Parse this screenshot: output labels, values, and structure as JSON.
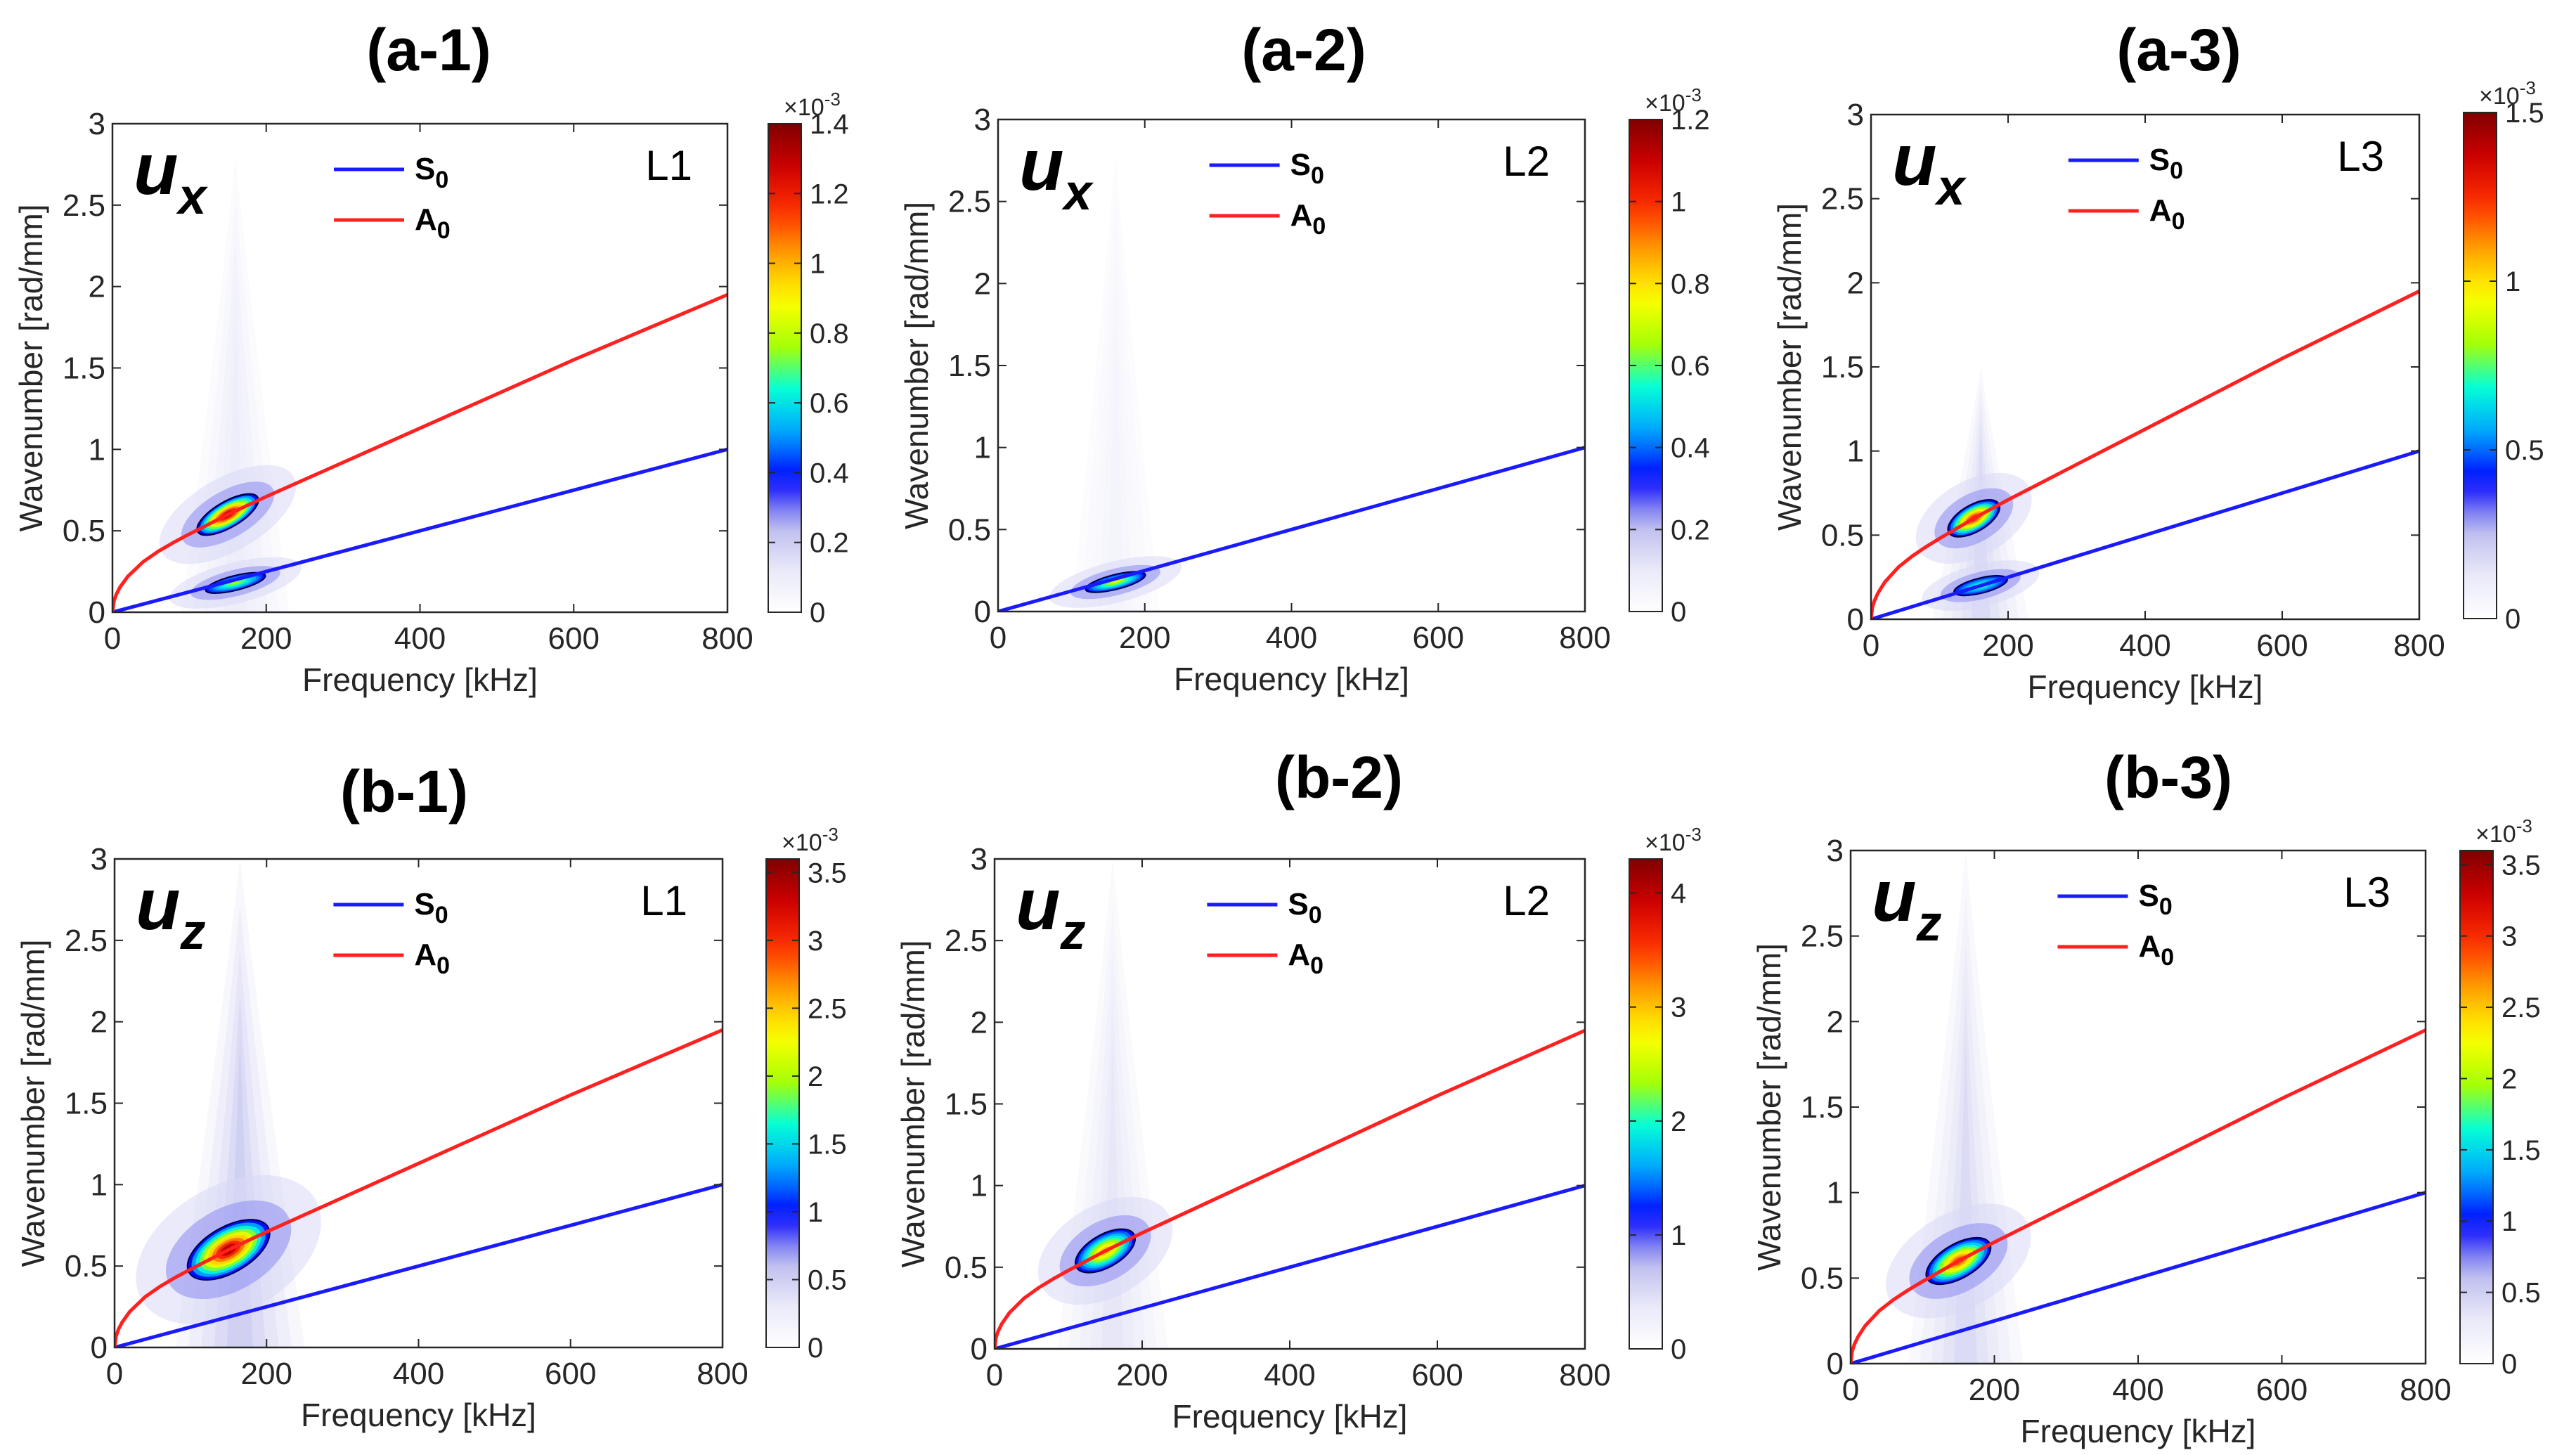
{
  "figure": {
    "description_free": true,
    "colormap": [
      "#ffffff",
      "#e8e8f8",
      "#b8b8ee",
      "#0000ff",
      "#00a0ff",
      "#00ffdd",
      "#aaff00",
      "#ffff00",
      "#ffa500",
      "#ff3300",
      "#d00000",
      "#800000"
    ],
    "line_colors": {
      "S0": "#1a1aff",
      "A0": "#ff2020"
    }
  },
  "chart_data": [
    {
      "id": "a-1",
      "type": "heatmap",
      "title": "(a-1)",
      "component": "u",
      "component_sub": "x",
      "layer": "L1",
      "xlabel": "Frequency [kHz]",
      "ylabel": "Wavenumber [rad/mm]",
      "xlim": [
        0,
        800
      ],
      "ylim": [
        0,
        3
      ],
      "xticks": [
        "0",
        "200",
        "400",
        "600",
        "800"
      ],
      "yticks": [
        "0",
        "0.5",
        "1",
        "1.5",
        "2",
        "2.5",
        "3"
      ],
      "legend": [
        {
          "name": "S",
          "sub": "0",
          "color": "#1a1aff"
        },
        {
          "name": "A",
          "sub": "0",
          "color": "#ff2020"
        }
      ],
      "colorbar": {
        "exponent": "×10",
        "exponent_sup": "-3",
        "max": 1.4,
        "ticks": [
          "0",
          "0.2",
          "0.4",
          "0.6",
          "0.8",
          "1",
          "1.2",
          "1.4"
        ],
        "tick_values": [
          0,
          0.2,
          0.4,
          0.6,
          0.8,
          1.0,
          1.2,
          1.4
        ]
      },
      "series": [
        {
          "name": "S0",
          "x": [
            0,
            200,
            400,
            600,
            800
          ],
          "y": [
            0,
            0.25,
            0.5,
            0.75,
            1.0
          ]
        },
        {
          "name": "A0",
          "x": [
            0,
            2,
            5,
            10,
            20,
            40,
            60,
            80,
            100,
            150,
            200,
            300,
            400,
            500,
            600,
            700,
            800
          ],
          "y": [
            0,
            0.07,
            0.11,
            0.155,
            0.22,
            0.31,
            0.375,
            0.43,
            0.48,
            0.6,
            0.71,
            0.92,
            1.13,
            1.34,
            1.55,
            1.75,
            1.95
          ]
        }
      ],
      "hotspots": [
        {
          "x": 150,
          "y": 0.6,
          "rx": 45,
          "ry": 0.08,
          "level": 1.0
        },
        {
          "x": 160,
          "y": 0.18,
          "rx": 40,
          "ry": 0.045,
          "level": 0.55
        }
      ],
      "haze": {
        "x": 160,
        "halfwidth": 70,
        "top": 2.8,
        "level": 0.06
      }
    },
    {
      "id": "a-2",
      "type": "heatmap",
      "title": "(a-2)",
      "component": "u",
      "component_sub": "x",
      "layer": "L2",
      "xlabel": "Frequency [kHz]",
      "ylabel": "Wavenumber [rad/mm]",
      "xlim": [
        0,
        800
      ],
      "ylim": [
        0,
        3
      ],
      "xticks": [
        "0",
        "200",
        "400",
        "600",
        "800"
      ],
      "yticks": [
        "0",
        "0.5",
        "1",
        "1.5",
        "2",
        "2.5",
        "3"
      ],
      "legend": [
        {
          "name": "S",
          "sub": "0",
          "color": "#1a1aff"
        },
        {
          "name": "A",
          "sub": "0",
          "color": "#ff2020"
        }
      ],
      "colorbar": {
        "exponent": "×10",
        "exponent_sup": "-3",
        "max": 1.2,
        "ticks": [
          "0",
          "0.2",
          "0.4",
          "0.6",
          "0.8",
          "1",
          "1.2"
        ],
        "tick_values": [
          0,
          0.2,
          0.4,
          0.6,
          0.8,
          1.0,
          1.2
        ]
      },
      "series": [
        {
          "name": "S0",
          "x": [
            0,
            200,
            400,
            600,
            800
          ],
          "y": [
            0,
            0.25,
            0.5,
            0.75,
            1.0
          ]
        }
      ],
      "hotspots": [
        {
          "x": 160,
          "y": 0.18,
          "rx": 42,
          "ry": 0.045,
          "level": 0.6
        }
      ],
      "haze": {
        "x": 160,
        "halfwidth": 60,
        "top": 2.8,
        "level": 0.04
      }
    },
    {
      "id": "a-3",
      "type": "heatmap",
      "title": "(a-3)",
      "component": "u",
      "component_sub": "x",
      "layer": "L3",
      "xlabel": "Frequency [kHz]",
      "ylabel": "Wavenumber [rad/mm]",
      "xlim": [
        0,
        800
      ],
      "ylim": [
        0,
        3
      ],
      "xticks": [
        "0",
        "200",
        "400",
        "600",
        "800"
      ],
      "yticks": [
        "0",
        "0.5",
        "1",
        "1.5",
        "2",
        "2.5",
        "3"
      ],
      "legend": [
        {
          "name": "S",
          "sub": "0",
          "color": "#1a1aff"
        },
        {
          "name": "A",
          "sub": "0",
          "color": "#ff2020"
        }
      ],
      "colorbar": {
        "exponent": "×10",
        "exponent_sup": "-3",
        "max": 1.5,
        "ticks": [
          "0",
          "0.5",
          "1",
          "1.5"
        ],
        "tick_values": [
          0,
          0.5,
          1.0,
          1.5
        ]
      },
      "series": [
        {
          "name": "S0",
          "x": [
            0,
            200,
            400,
            600,
            800
          ],
          "y": [
            0,
            0.25,
            0.5,
            0.75,
            1.0
          ]
        },
        {
          "name": "A0",
          "x": [
            0,
            2,
            5,
            10,
            20,
            40,
            60,
            80,
            100,
            150,
            200,
            300,
            400,
            500,
            600,
            700,
            800
          ],
          "y": [
            0,
            0.07,
            0.11,
            0.155,
            0.22,
            0.31,
            0.375,
            0.43,
            0.48,
            0.6,
            0.71,
            0.92,
            1.13,
            1.34,
            1.55,
            1.75,
            1.95
          ]
        }
      ],
      "hotspots": [
        {
          "x": 150,
          "y": 0.6,
          "rx": 42,
          "ry": 0.08,
          "level": 0.9
        },
        {
          "x": 160,
          "y": 0.2,
          "rx": 40,
          "ry": 0.045,
          "level": 0.5
        }
      ],
      "haze": {
        "x": 160,
        "halfwidth": 70,
        "top": 1.5,
        "level": 0.1
      }
    },
    {
      "id": "b-1",
      "type": "heatmap",
      "title": "(b-1)",
      "component": "u",
      "component_sub": "z",
      "layer": "L1",
      "xlabel": "Frequency [kHz]",
      "ylabel": "Wavenumber [rad/mm]",
      "xlim": [
        0,
        800
      ],
      "ylim": [
        0,
        3
      ],
      "xticks": [
        "0",
        "200",
        "400",
        "600",
        "800"
      ],
      "yticks": [
        "0",
        "0.5",
        "1",
        "1.5",
        "2",
        "2.5",
        "3"
      ],
      "legend": [
        {
          "name": "S",
          "sub": "0",
          "color": "#1a1aff"
        },
        {
          "name": "A",
          "sub": "0",
          "color": "#ff2020"
        }
      ],
      "colorbar": {
        "exponent": "×10",
        "exponent_sup": "-3",
        "max": 3.6,
        "ticks": [
          "0",
          "0.5",
          "1",
          "1.5",
          "2",
          "2.5",
          "3",
          "3.5"
        ],
        "tick_values": [
          0,
          0.5,
          1.0,
          1.5,
          2.0,
          2.5,
          3.0,
          3.5
        ]
      },
      "series": [
        {
          "name": "S0",
          "x": [
            0,
            200,
            400,
            600,
            800
          ],
          "y": [
            0,
            0.25,
            0.5,
            0.75,
            1.0
          ]
        },
        {
          "name": "A0",
          "x": [
            0,
            2,
            5,
            10,
            20,
            40,
            60,
            80,
            100,
            150,
            200,
            300,
            400,
            500,
            600,
            700,
            800
          ],
          "y": [
            0,
            0.07,
            0.11,
            0.155,
            0.22,
            0.31,
            0.375,
            0.43,
            0.48,
            0.6,
            0.71,
            0.92,
            1.13,
            1.34,
            1.55,
            1.75,
            1.95
          ]
        }
      ],
      "hotspots": [
        {
          "x": 150,
          "y": 0.6,
          "rx": 60,
          "ry": 0.14,
          "level": 1.0
        }
      ],
      "haze": {
        "x": 165,
        "halfwidth": 85,
        "top": 3.0,
        "level": 0.12
      }
    },
    {
      "id": "b-2",
      "type": "heatmap",
      "title": "(b-2)",
      "component": "u",
      "component_sub": "z",
      "layer": "L2",
      "xlabel": "Frequency [kHz]",
      "ylabel": "Wavenumber [rad/mm]",
      "xlim": [
        0,
        800
      ],
      "ylim": [
        0,
        3
      ],
      "xticks": [
        "0",
        "200",
        "400",
        "600",
        "800"
      ],
      "yticks": [
        "0",
        "0.5",
        "1",
        "1.5",
        "2",
        "2.5",
        "3"
      ],
      "legend": [
        {
          "name": "S",
          "sub": "0",
          "color": "#1a1aff"
        },
        {
          "name": "A",
          "sub": "0",
          "color": "#ff2020"
        }
      ],
      "colorbar": {
        "exponent": "×10",
        "exponent_sup": "-3",
        "max": 4.3,
        "ticks": [
          "0",
          "1",
          "2",
          "3",
          "4"
        ],
        "tick_values": [
          0,
          1,
          2,
          3,
          4
        ]
      },
      "series": [
        {
          "name": "S0",
          "x": [
            0,
            200,
            400,
            600,
            800
          ],
          "y": [
            0,
            0.25,
            0.5,
            0.75,
            1.0
          ]
        },
        {
          "name": "A0",
          "x": [
            0,
            2,
            5,
            10,
            20,
            40,
            60,
            80,
            100,
            150,
            200,
            300,
            400,
            500,
            600,
            700,
            800
          ],
          "y": [
            0,
            0.07,
            0.11,
            0.155,
            0.22,
            0.31,
            0.375,
            0.43,
            0.48,
            0.6,
            0.71,
            0.92,
            1.13,
            1.34,
            1.55,
            1.75,
            1.95
          ]
        }
      ],
      "hotspots": [
        {
          "x": 150,
          "y": 0.6,
          "rx": 45,
          "ry": 0.1,
          "level": 0.75
        }
      ],
      "haze": {
        "x": 160,
        "halfwidth": 75,
        "top": 3.0,
        "level": 0.08
      }
    },
    {
      "id": "b-3",
      "type": "heatmap",
      "title": "(b-3)",
      "component": "u",
      "component_sub": "z",
      "layer": "L3",
      "xlabel": "Frequency [kHz]",
      "ylabel": "Wavenumber [rad/mm]",
      "xlim": [
        0,
        800
      ],
      "ylim": [
        0,
        3
      ],
      "xticks": [
        "0",
        "200",
        "400",
        "600",
        "800"
      ],
      "yticks": [
        "0",
        "0.5",
        "1",
        "1.5",
        "2",
        "2.5",
        "3"
      ],
      "legend": [
        {
          "name": "S",
          "sub": "0",
          "color": "#1a1aff"
        },
        {
          "name": "A",
          "sub": "0",
          "color": "#ff2020"
        }
      ],
      "colorbar": {
        "exponent": "×10",
        "exponent_sup": "-3",
        "max": 3.6,
        "ticks": [
          "0",
          "0.5",
          "1",
          "1.5",
          "2",
          "2.5",
          "3",
          "3.5"
        ],
        "tick_values": [
          0,
          0.5,
          1.0,
          1.5,
          2.0,
          2.5,
          3.0,
          3.5
        ]
      },
      "series": [
        {
          "name": "S0",
          "x": [
            0,
            200,
            400,
            600,
            800
          ],
          "y": [
            0,
            0.25,
            0.5,
            0.75,
            1.0
          ]
        },
        {
          "name": "A0",
          "x": [
            0,
            2,
            5,
            10,
            20,
            40,
            60,
            80,
            100,
            150,
            200,
            300,
            400,
            500,
            600,
            700,
            800
          ],
          "y": [
            0,
            0.07,
            0.11,
            0.155,
            0.22,
            0.31,
            0.375,
            0.43,
            0.48,
            0.6,
            0.71,
            0.92,
            1.13,
            1.34,
            1.55,
            1.75,
            1.95
          ]
        }
      ],
      "hotspots": [
        {
          "x": 150,
          "y": 0.6,
          "rx": 50,
          "ry": 0.1,
          "level": 0.85
        }
      ],
      "haze": {
        "x": 160,
        "halfwidth": 80,
        "top": 3.0,
        "level": 0.1
      }
    }
  ]
}
